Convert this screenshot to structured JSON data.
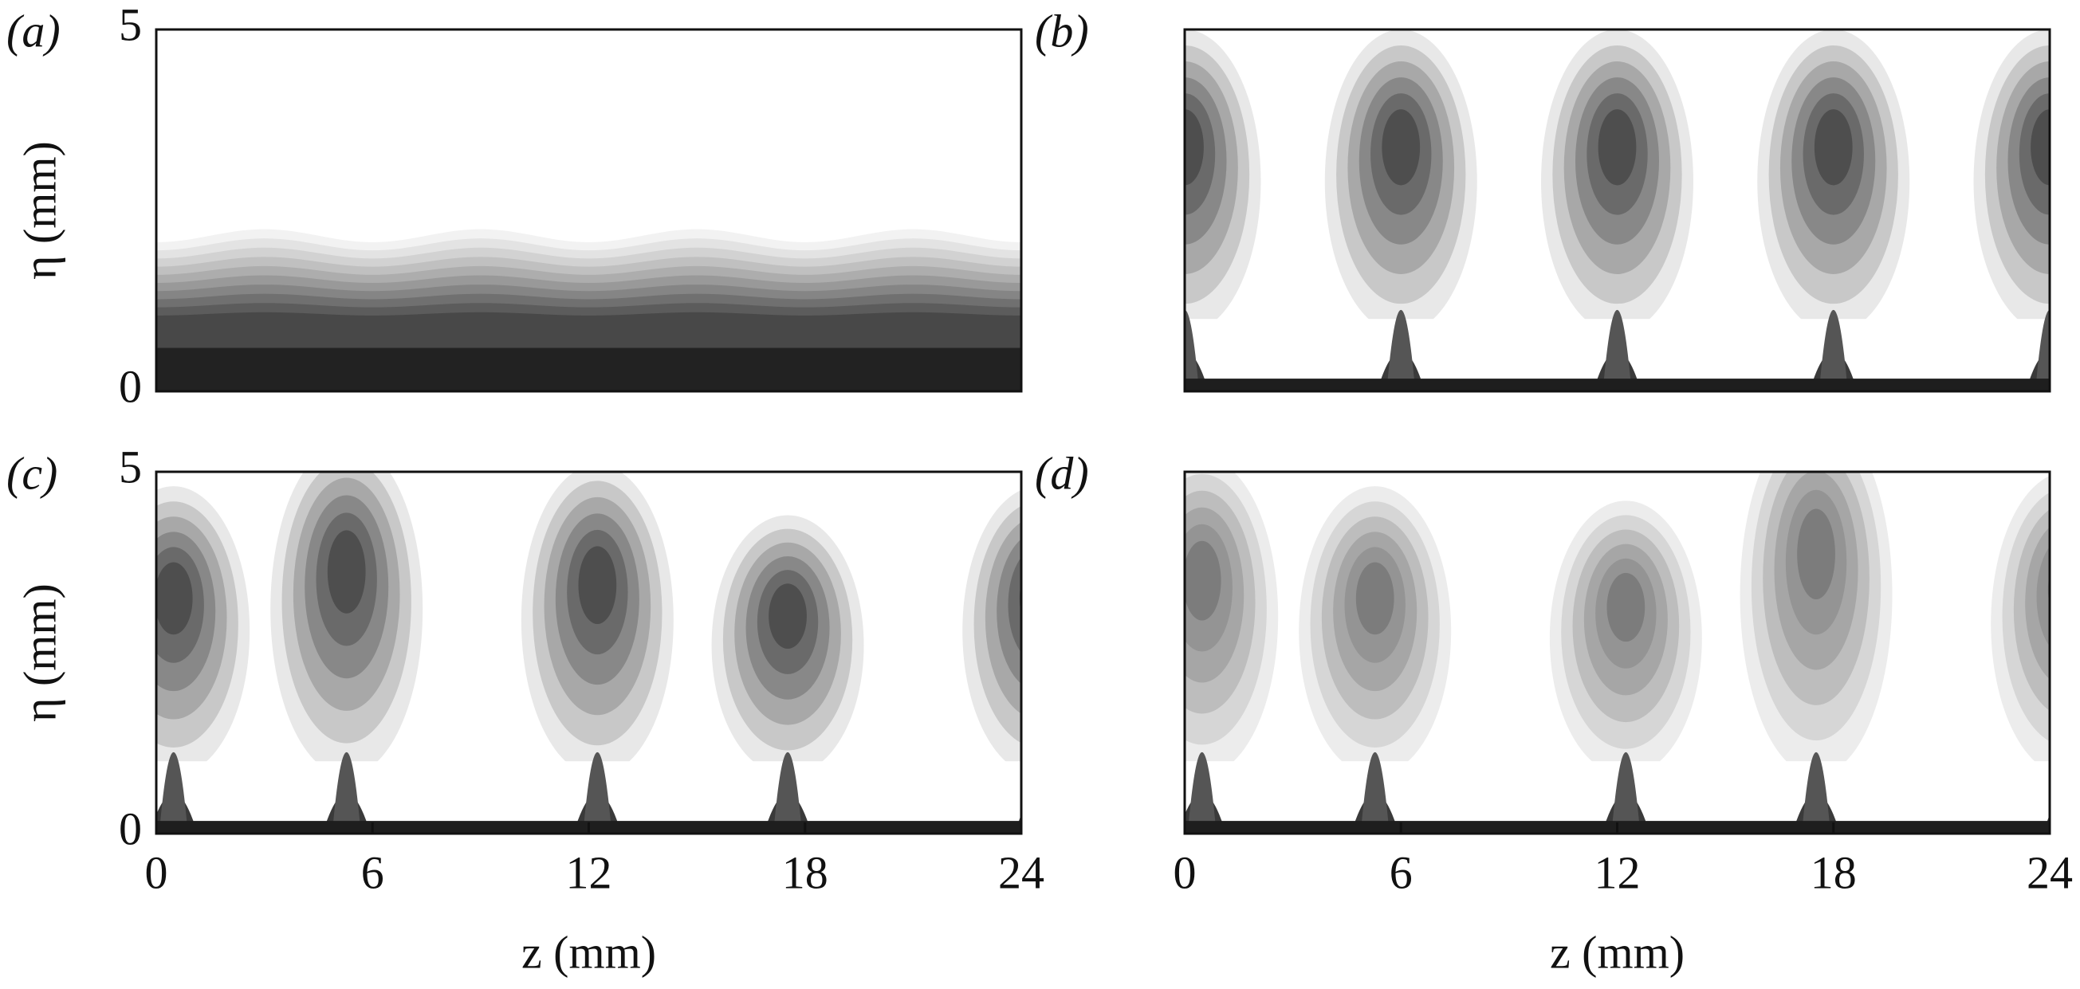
{
  "chart_data": [
    {
      "type": "contour",
      "panel": "(a)",
      "ylabel": "η (mm)",
      "xlim": [
        0,
        24
      ],
      "ylim": [
        0,
        5
      ],
      "yticks": [
        0,
        5
      ],
      "style": "stratified"
    },
    {
      "type": "contour",
      "panel": "(b)",
      "xlim": [
        0,
        24
      ],
      "ylim": [
        0,
        5
      ],
      "style": "mushroom"
    },
    {
      "type": "contour",
      "panel": "(c)",
      "ylabel": "η (mm)",
      "xlabel": "z (mm)",
      "xlim": [
        0,
        24
      ],
      "ylim": [
        0,
        5
      ],
      "yticks": [
        0,
        5
      ],
      "xticks": [
        0,
        6,
        12,
        18,
        24
      ],
      "style": "distorted"
    },
    {
      "type": "contour",
      "panel": "(d)",
      "xlabel": "z (mm)",
      "xlim": [
        0,
        24
      ],
      "ylim": [
        0,
        5
      ],
      "xticks": [
        0,
        6,
        12,
        18,
        24
      ],
      "style": "turbulent"
    }
  ]
}
